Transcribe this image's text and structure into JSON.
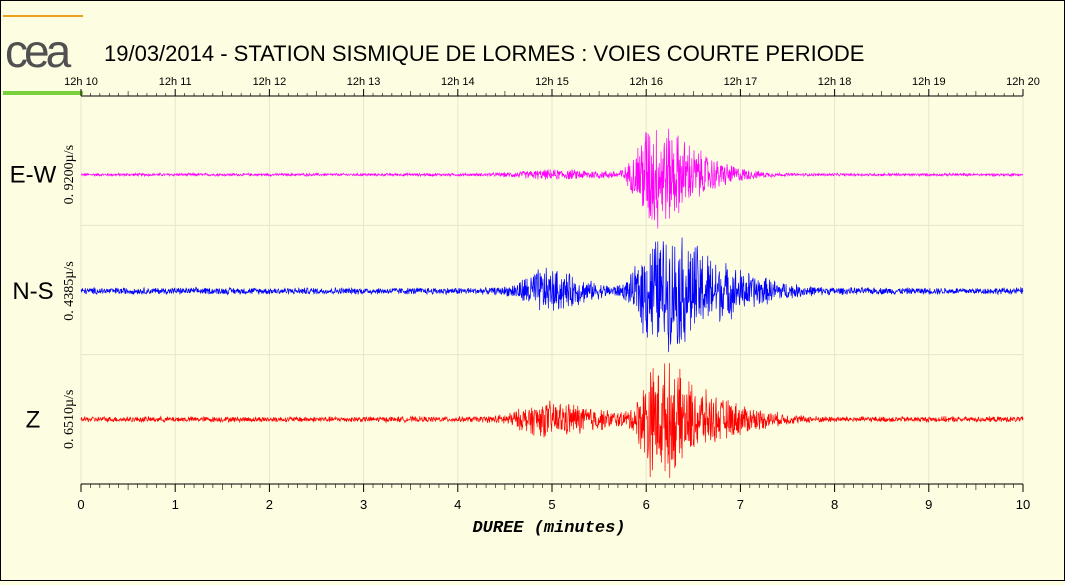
{
  "logo_text": "cea",
  "title": "19/03/2014  -  STATION SISMIQUE DE LORMES : VOIES COURTE PERIODE",
  "colors": {
    "background": "#fdfde1",
    "logo_orange": "#f0a020",
    "logo_green": "#7ad03a",
    "grid": "#e6e6d0"
  },
  "chart_data": {
    "type": "line",
    "title": "19/03/2014  -  STATION SISMIQUE DE LORMES : VOIES COURTE PERIODE",
    "xlabel": "DUREE (minutes)",
    "ylabel": "",
    "xlim": [
      0,
      10
    ],
    "x_ticks": [
      "0",
      "1",
      "2",
      "3",
      "4",
      "5",
      "6",
      "7",
      "8",
      "9",
      "10"
    ],
    "top_ticks": [
      "12h 10",
      "12h 11",
      "12h 12",
      "12h 13",
      "12h 14",
      "12h 15",
      "12h 16",
      "12h 17",
      "12h 18",
      "12h 19",
      "12h 20"
    ],
    "grid": true,
    "series": [
      {
        "name": "E-W",
        "scale": "0. 9200µ/s",
        "color": "#ff00ff",
        "baseline_noise": 0.025,
        "packets": [
          {
            "t": 5.0,
            "amp": 0.07,
            "w": 0.6
          },
          {
            "t": 6.05,
            "amp": 1.0,
            "w": 0.25
          },
          {
            "t": 6.5,
            "amp": 0.3,
            "w": 0.35
          }
        ]
      },
      {
        "name": "N-S",
        "scale": "0. 4385µ/s",
        "color": "#0000ff",
        "baseline_noise": 0.06,
        "packets": [
          {
            "t": 4.9,
            "amp": 0.35,
            "w": 0.35
          },
          {
            "t": 6.1,
            "amp": 1.0,
            "w": 0.3
          },
          {
            "t": 6.6,
            "amp": 0.45,
            "w": 0.5
          }
        ]
      },
      {
        "name": "Z",
        "scale": "0. 6510µ/s",
        "color": "#ff0000",
        "baseline_noise": 0.05,
        "packets": [
          {
            "t": 4.95,
            "amp": 0.28,
            "w": 0.5
          },
          {
            "t": 6.1,
            "amp": 1.0,
            "w": 0.25
          },
          {
            "t": 6.6,
            "amp": 0.35,
            "w": 0.45
          }
        ]
      }
    ]
  }
}
